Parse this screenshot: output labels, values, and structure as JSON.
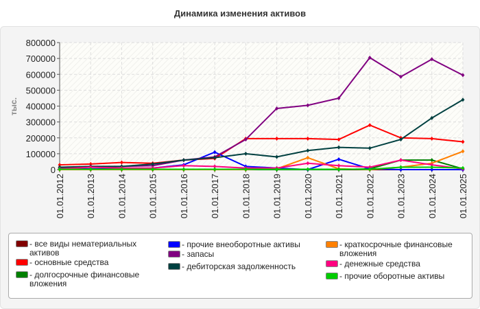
{
  "chart_data": {
    "type": "line",
    "title": "Динамика изменения активов",
    "ylabel": "тыс.",
    "xlabel": "",
    "ylim": [
      0,
      800000
    ],
    "yticks": [
      0,
      100000,
      200000,
      300000,
      400000,
      500000,
      600000,
      700000,
      800000
    ],
    "grid": true,
    "legend_position": "bottom",
    "categories": [
      "01.01.2012",
      "01.01.2013",
      "01.01.2014",
      "01.01.2015",
      "01.01.2016",
      "01.01.2017",
      "01.01.2018",
      "01.01.2019",
      "01.01.2020",
      "01.01.2021",
      "01.01.2022",
      "01.01.2023",
      "01.01.2024",
      "01.01.2025"
    ],
    "series": [
      {
        "name": "- все виды нематериальных активов",
        "color": "#800000",
        "values": [
          0,
          0,
          0,
          0,
          0,
          0,
          0,
          0,
          0,
          0,
          0,
          0,
          0,
          0
        ]
      },
      {
        "name": "- основные средства",
        "color": "#ff0000",
        "values": [
          30000,
          35000,
          45000,
          40000,
          60000,
          70000,
          195000,
          195000,
          195000,
          190000,
          280000,
          200000,
          195000,
          175000
        ]
      },
      {
        "name": "- долгосрочные финансовые вложения",
        "color": "#008000",
        "values": [
          0,
          0,
          0,
          0,
          0,
          0,
          0,
          0,
          0,
          0,
          5000,
          60000,
          60000,
          5000
        ]
      },
      {
        "name": "- прочие внеоборотные активы",
        "color": "#0000ff",
        "values": [
          5000,
          5000,
          5000,
          10000,
          30000,
          110000,
          20000,
          10000,
          0,
          65000,
          5000,
          0,
          0,
          0
        ]
      },
      {
        "name": "- запасы",
        "color": "#800080",
        "values": [
          10000,
          20000,
          20000,
          25000,
          60000,
          80000,
          190000,
          385000,
          405000,
          450000,
          705000,
          585000,
          695000,
          595000
        ]
      },
      {
        "name": "- дебиторская задолженность",
        "color": "#004040",
        "values": [
          15000,
          20000,
          20000,
          35000,
          60000,
          75000,
          100000,
          80000,
          120000,
          140000,
          135000,
          190000,
          325000,
          440000
        ]
      },
      {
        "name": "- краткосрочные финансовые вложения",
        "color": "#ff8000",
        "values": [
          0,
          0,
          0,
          0,
          0,
          0,
          0,
          5000,
          75000,
          5000,
          0,
          15000,
          40000,
          115000
        ]
      },
      {
        "name": "- денежные средства",
        "color": "#ff0080",
        "values": [
          5000,
          15000,
          10000,
          10000,
          25000,
          20000,
          10000,
          10000,
          40000,
          25000,
          15000,
          60000,
          30000,
          5000
        ]
      },
      {
        "name": "- прочие оборотные активы",
        "color": "#00cc00",
        "values": [
          2000,
          2000,
          2000,
          2000,
          2000,
          2000,
          2000,
          2000,
          2000,
          2000,
          2000,
          15000,
          15000,
          10000
        ]
      }
    ]
  }
}
